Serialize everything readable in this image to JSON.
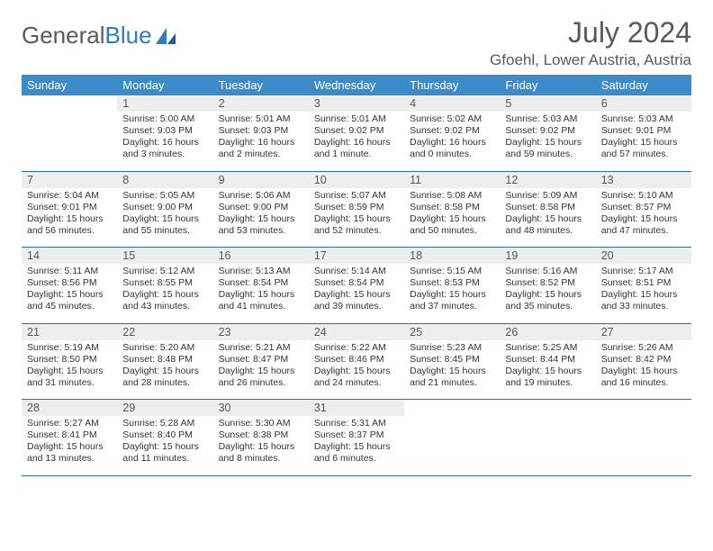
{
  "brand": {
    "part1": "General",
    "part2": "Blue"
  },
  "title": "July 2024",
  "location": "Gfoehl, Lower Austria, Austria",
  "colors": {
    "header_bg": "#3b8bc9",
    "daynum_bg": "#eeeeee",
    "row_border": "#2f6fa3",
    "text": "#333333",
    "title_text": "#595959"
  },
  "weekdays": [
    "Sunday",
    "Monday",
    "Tuesday",
    "Wednesday",
    "Thursday",
    "Friday",
    "Saturday"
  ],
  "weeks": [
    {
      "nums": [
        "",
        "1",
        "2",
        "3",
        "4",
        "5",
        "6"
      ],
      "details": [
        "",
        "Sunrise: 5:00 AM\nSunset: 9:03 PM\nDaylight: 16 hours and 3 minutes.",
        "Sunrise: 5:01 AM\nSunset: 9:03 PM\nDaylight: 16 hours and 2 minutes.",
        "Sunrise: 5:01 AM\nSunset: 9:02 PM\nDaylight: 16 hours and 1 minute.",
        "Sunrise: 5:02 AM\nSunset: 9:02 PM\nDaylight: 16 hours and 0 minutes.",
        "Sunrise: 5:03 AM\nSunset: 9:02 PM\nDaylight: 15 hours and 59 minutes.",
        "Sunrise: 5:03 AM\nSunset: 9:01 PM\nDaylight: 15 hours and 57 minutes."
      ]
    },
    {
      "nums": [
        "7",
        "8",
        "9",
        "10",
        "11",
        "12",
        "13"
      ],
      "details": [
        "Sunrise: 5:04 AM\nSunset: 9:01 PM\nDaylight: 15 hours and 56 minutes.",
        "Sunrise: 5:05 AM\nSunset: 9:00 PM\nDaylight: 15 hours and 55 minutes.",
        "Sunrise: 5:06 AM\nSunset: 9:00 PM\nDaylight: 15 hours and 53 minutes.",
        "Sunrise: 5:07 AM\nSunset: 8:59 PM\nDaylight: 15 hours and 52 minutes.",
        "Sunrise: 5:08 AM\nSunset: 8:58 PM\nDaylight: 15 hours and 50 minutes.",
        "Sunrise: 5:09 AM\nSunset: 8:58 PM\nDaylight: 15 hours and 48 minutes.",
        "Sunrise: 5:10 AM\nSunset: 8:57 PM\nDaylight: 15 hours and 47 minutes."
      ]
    },
    {
      "nums": [
        "14",
        "15",
        "16",
        "17",
        "18",
        "19",
        "20"
      ],
      "details": [
        "Sunrise: 5:11 AM\nSunset: 8:56 PM\nDaylight: 15 hours and 45 minutes.",
        "Sunrise: 5:12 AM\nSunset: 8:55 PM\nDaylight: 15 hours and 43 minutes.",
        "Sunrise: 5:13 AM\nSunset: 8:54 PM\nDaylight: 15 hours and 41 minutes.",
        "Sunrise: 5:14 AM\nSunset: 8:54 PM\nDaylight: 15 hours and 39 minutes.",
        "Sunrise: 5:15 AM\nSunset: 8:53 PM\nDaylight: 15 hours and 37 minutes.",
        "Sunrise: 5:16 AM\nSunset: 8:52 PM\nDaylight: 15 hours and 35 minutes.",
        "Sunrise: 5:17 AM\nSunset: 8:51 PM\nDaylight: 15 hours and 33 minutes."
      ]
    },
    {
      "nums": [
        "21",
        "22",
        "23",
        "24",
        "25",
        "26",
        "27"
      ],
      "details": [
        "Sunrise: 5:19 AM\nSunset: 8:50 PM\nDaylight: 15 hours and 31 minutes.",
        "Sunrise: 5:20 AM\nSunset: 8:48 PM\nDaylight: 15 hours and 28 minutes.",
        "Sunrise: 5:21 AM\nSunset: 8:47 PM\nDaylight: 15 hours and 26 minutes.",
        "Sunrise: 5:22 AM\nSunset: 8:46 PM\nDaylight: 15 hours and 24 minutes.",
        "Sunrise: 5:23 AM\nSunset: 8:45 PM\nDaylight: 15 hours and 21 minutes.",
        "Sunrise: 5:25 AM\nSunset: 8:44 PM\nDaylight: 15 hours and 19 minutes.",
        "Sunrise: 5:26 AM\nSunset: 8:42 PM\nDaylight: 15 hours and 16 minutes."
      ]
    },
    {
      "nums": [
        "28",
        "29",
        "30",
        "31",
        "",
        "",
        ""
      ],
      "details": [
        "Sunrise: 5:27 AM\nSunset: 8:41 PM\nDaylight: 15 hours and 13 minutes.",
        "Sunrise: 5:28 AM\nSunset: 8:40 PM\nDaylight: 15 hours and 11 minutes.",
        "Sunrise: 5:30 AM\nSunset: 8:38 PM\nDaylight: 15 hours and 8 minutes.",
        "Sunrise: 5:31 AM\nSunset: 8:37 PM\nDaylight: 15 hours and 6 minutes.",
        "",
        "",
        ""
      ]
    }
  ]
}
